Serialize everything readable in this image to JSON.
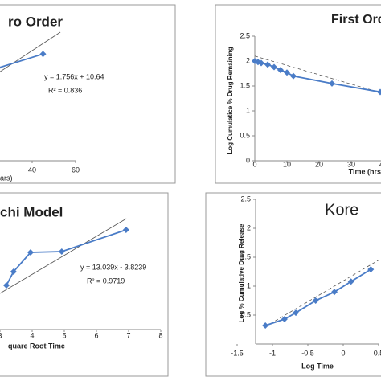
{
  "chart_data": [
    {
      "type": "line",
      "title": "ro Order",
      "x_label": "ars)",
      "equation": "y = 1.756x + 10.64",
      "r2": "R² = 0.836",
      "xlim": [
        0,
        60
      ],
      "ylim": [
        0,
        100
      ],
      "xticks": [
        40,
        60
      ],
      "series": [
        {
          "color": "#4a7cc7",
          "x": [
            24,
            45
          ],
          "values": [
            72,
            83
          ]
        }
      ],
      "trend": {
        "x": [
          25,
          53
        ],
        "values": [
          69,
          100
        ],
        "dashed": false
      }
    },
    {
      "type": "line",
      "title": "First Ord",
      "x_label": "Time (hrs",
      "y_label": "Log Cumulatice % Drug Remaining",
      "xlim": [
        0,
        40
      ],
      "ylim": [
        0,
        2.5
      ],
      "xticks": [
        0,
        10,
        20,
        30,
        40
      ],
      "yticks": [
        0,
        0.5,
        1,
        1.5,
        2,
        2.5
      ],
      "series": [
        {
          "color": "#4a7cc7",
          "x": [
            0,
            1,
            2,
            4,
            6,
            8,
            10,
            12,
            24,
            39
          ],
          "values": [
            2.0,
            1.98,
            1.96,
            1.93,
            1.88,
            1.82,
            1.77,
            1.7,
            1.55,
            1.38
          ]
        }
      ],
      "trend": {
        "x": [
          0,
          39
        ],
        "values": [
          2.1,
          1.37
        ],
        "dashed": true
      }
    },
    {
      "type": "line",
      "title": "chi Model",
      "x_label": "quare Root Time",
      "equation": "y = 13.039x - 3.8239",
      "r2": "R² = 0.9719",
      "xlim": [
        3,
        8
      ],
      "ylim": [
        0,
        140
      ],
      "xticks": [
        3,
        4,
        5,
        6,
        7,
        8
      ],
      "series": [
        {
          "color": "#4a7cc7",
          "x": [
            3.2,
            3.42,
            3.95,
            4.92,
            6.92
          ],
          "values": [
            55,
            72,
            96,
            97,
            124
          ]
        }
      ],
      "trend": {
        "x": [
          3,
          6.93
        ],
        "values": [
          45,
          138
        ],
        "dashed": false
      }
    },
    {
      "type": "line",
      "title": "Kore",
      "x_label": "Log Time",
      "y_label": "Log % Cumulative Drug Release",
      "xlim": [
        -1.5,
        0.5
      ],
      "ylim": [
        0,
        2.5
      ],
      "xticks": [
        -1.5,
        -1,
        -0.5,
        0,
        0.5
      ],
      "yticks": [
        0.5,
        1,
        1.5,
        2,
        2.5
      ],
      "series": [
        {
          "color": "#4a7cc7",
          "x": [
            -1.1,
            -0.83,
            -0.67,
            -0.39,
            -0.125,
            0.11,
            0.39
          ],
          "values": [
            0.32,
            0.43,
            0.54,
            0.75,
            0.9,
            1.08,
            1.29
          ]
        }
      ],
      "trend": {
        "x": [
          -1.1,
          0.5
        ],
        "values": [
          0.3,
          1.45
        ],
        "dashed": true
      }
    }
  ]
}
